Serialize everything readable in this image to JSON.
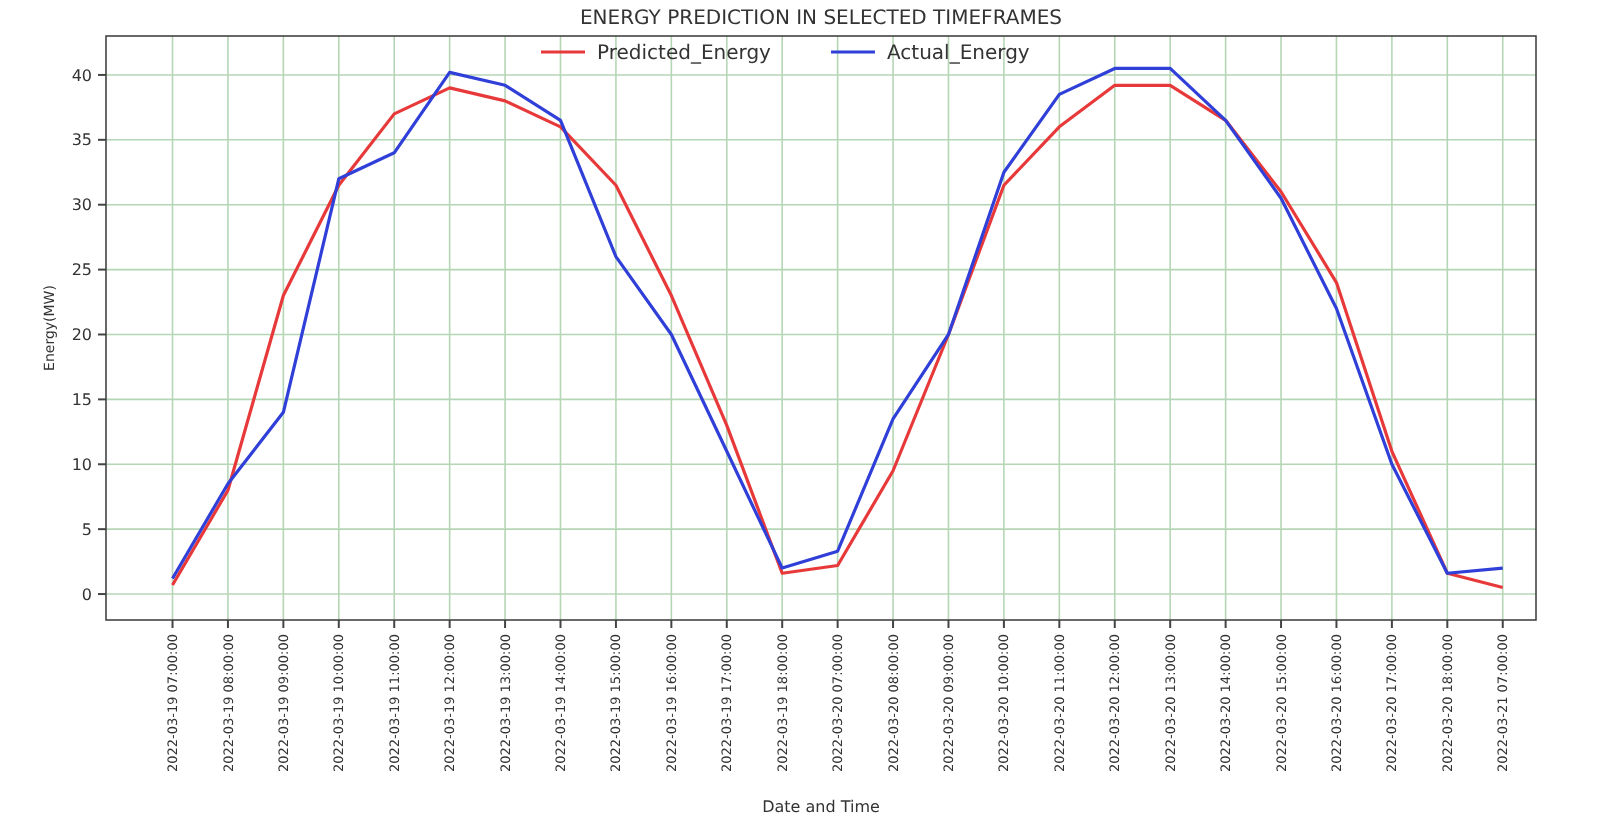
{
  "chart_data": {
    "type": "line",
    "title": "ENERGY PREDICTION IN SELECTED TIMEFRAMES",
    "xlabel": "Date and Time",
    "ylabel": "Energy(MW)",
    "categories": [
      "2022-03-19 07:00:00",
      "2022-03-19 08:00:00",
      "2022-03-19 09:00:00",
      "2022-03-19 10:00:00",
      "2022-03-19 11:00:00",
      "2022-03-19 12:00:00",
      "2022-03-19 13:00:00",
      "2022-03-19 14:00:00",
      "2022-03-19 15:00:00",
      "2022-03-19 16:00:00",
      "2022-03-19 17:00:00",
      "2022-03-19 18:00:00",
      "2022-03-20 07:00:00",
      "2022-03-20 08:00:00",
      "2022-03-20 09:00:00",
      "2022-03-20 10:00:00",
      "2022-03-20 11:00:00",
      "2022-03-20 12:00:00",
      "2022-03-20 13:00:00",
      "2022-03-20 14:00:00",
      "2022-03-20 15:00:00",
      "2022-03-20 16:00:00",
      "2022-03-20 17:00:00",
      "2022-03-20 18:00:00",
      "2022-03-21 07:00:00"
    ],
    "series": [
      {
        "name": "Predicted_Energy",
        "color": "#e8393a",
        "values": [
          0.7,
          8,
          23,
          31.5,
          37,
          39,
          38,
          36,
          31.5,
          23,
          13,
          1.6,
          2.2,
          9.5,
          20,
          31.5,
          36,
          39.2,
          39.2,
          36.5,
          31,
          24,
          11,
          1.6,
          0.5
        ]
      },
      {
        "name": "Actual_Energy",
        "color": "#2f3fd8",
        "values": [
          1.2,
          8.5,
          14,
          32,
          34,
          40.2,
          39.2,
          36.5,
          26,
          20,
          11,
          2,
          3.3,
          13.5,
          20,
          32.5,
          38.5,
          40.5,
          40.5,
          36.5,
          30.5,
          22,
          10,
          1.6,
          2
        ]
      }
    ],
    "ylim": [
      -2,
      43
    ],
    "yticks": [
      0,
      5,
      10,
      15,
      20,
      25,
      30,
      35,
      40
    ],
    "grid": true,
    "legend": "top",
    "line_style": "solid",
    "marker": "none"
  }
}
